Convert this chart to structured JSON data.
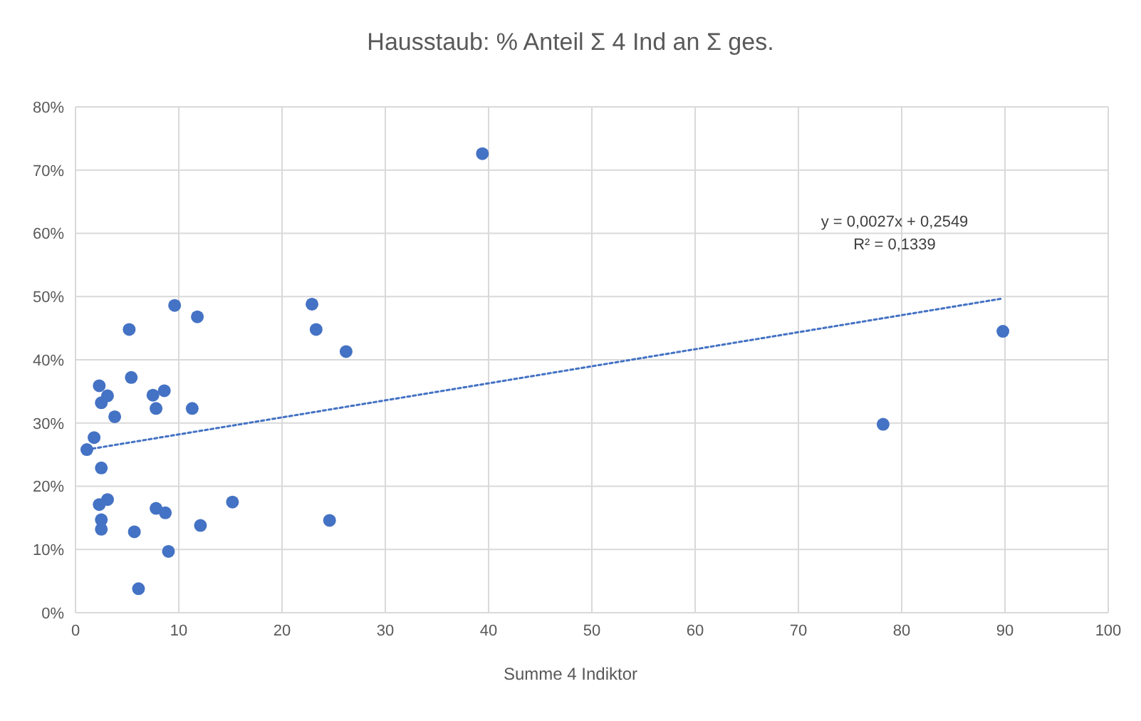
{
  "chart_data": {
    "type": "scatter",
    "title": "Hausstaub: % Anteil Σ 4 Ind an Σ ges.",
    "xlabel": "Summe 4 Indiktor",
    "xlim": [
      0,
      100
    ],
    "xticks": [
      0,
      10,
      20,
      30,
      40,
      50,
      60,
      70,
      80,
      90,
      100
    ],
    "ylim": [
      0,
      80
    ],
    "yticks": [
      {
        "value": 0,
        "label": "0%"
      },
      {
        "value": 10,
        "label": "10%"
      },
      {
        "value": 20,
        "label": "20%"
      },
      {
        "value": 30,
        "label": "30%"
      },
      {
        "value": 40,
        "label": "40%"
      },
      {
        "value": 50,
        "label": "50%"
      },
      {
        "value": 60,
        "label": "60%"
      },
      {
        "value": 70,
        "label": "70%"
      },
      {
        "value": 80,
        "label": "80%"
      }
    ],
    "grid": true,
    "series": [
      {
        "color": "#4472c4",
        "marker": "circle",
        "x": [
          9.6,
          11.8,
          5.2,
          5.4,
          2.3,
          3.1,
          2.5,
          3.8,
          7.5,
          8.6,
          7.8,
          11.3,
          1.8,
          1.1,
          2.5,
          3.1,
          2.3,
          15.2,
          7.8,
          8.7,
          2.5,
          2.5,
          12.1,
          5.7,
          24.6,
          9.0,
          6.1,
          22.9,
          23.3,
          26.2,
          39.4,
          89.8,
          78.2
        ],
        "values": [
          48.6,
          46.8,
          44.8,
          37.2,
          35.9,
          34.3,
          33.2,
          31.0,
          34.4,
          35.1,
          32.3,
          32.3,
          27.7,
          25.8,
          22.9,
          17.9,
          17.1,
          17.5,
          16.5,
          15.8,
          14.7,
          13.2,
          13.8,
          12.8,
          14.6,
          9.7,
          3.8,
          48.8,
          44.8,
          41.3,
          72.6,
          44.5,
          29.8
        ]
      },
      {
        "type": "line",
        "color": "#4472c4",
        "line_style": "dotted",
        "marker": "none",
        "x": [
          1.1,
          89.8
        ],
        "values": [
          25.8,
          49.7
        ]
      }
    ],
    "annotations": [
      "y = 0,0027x + 0,2549",
      "R² = 0,1339"
    ]
  }
}
